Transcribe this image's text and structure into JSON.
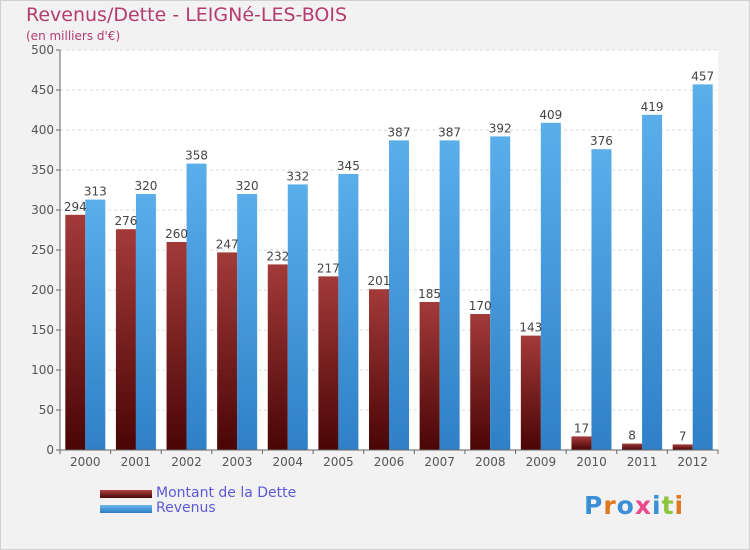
{
  "chart_data": {
    "type": "bar",
    "title": "Revenus/Dette - LEIGNé-LES-BOIS",
    "subtitle": "(en milliers d'€)",
    "categories": [
      "2000",
      "2001",
      "2002",
      "2003",
      "2004",
      "2005",
      "2006",
      "2007",
      "2008",
      "2009",
      "2010",
      "2011",
      "2012"
    ],
    "series": [
      {
        "name": "Montant de la Dette",
        "color": "#7a1a1a",
        "values": [
          294,
          276,
          260,
          247,
          232,
          217,
          201,
          185,
          170,
          143,
          17,
          8,
          7
        ]
      },
      {
        "name": "Revenus",
        "color": "#3c96dc",
        "values": [
          313,
          320,
          358,
          320,
          332,
          345,
          387,
          387,
          392,
          409,
          376,
          419,
          457
        ]
      }
    ],
    "yticks": [
      0,
      50,
      100,
      150,
      200,
      250,
      300,
      350,
      400,
      450,
      500
    ],
    "ylim": [
      0,
      500
    ],
    "grid": true,
    "legend_position": "bottom-left"
  },
  "logo": {
    "text": "Proxiti",
    "letter_colors": [
      "#3b8fd6",
      "#e07820",
      "#3b8fd6",
      "#e84c8c",
      "#3b8fd6",
      "#8cc63e",
      "#e07820"
    ]
  }
}
